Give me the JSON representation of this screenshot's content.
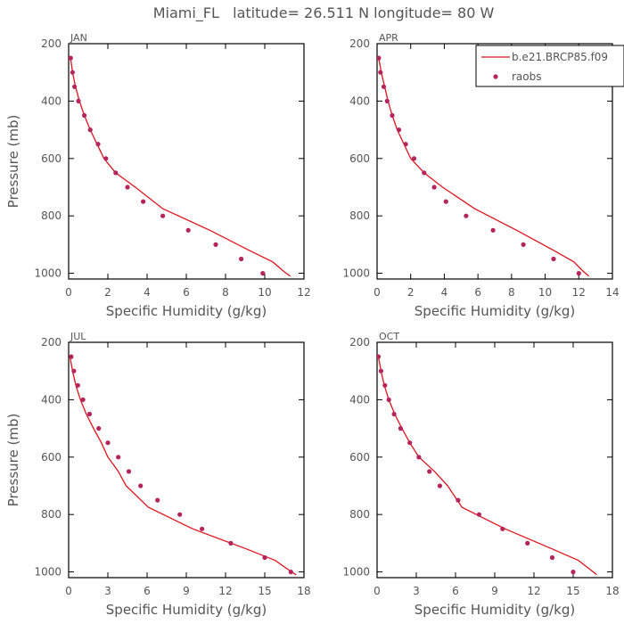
{
  "chart_data": {
    "type": "line",
    "title": "Miami_FL   latitude= 26.511 N longitude= 80 W",
    "legend": {
      "model_label": "b.e21.BRCP85.f09",
      "obs_label": "raobs",
      "placement": "top-right"
    },
    "colors": {
      "model": "#e0141e",
      "obs": "#b5245a"
    },
    "panels": [
      {
        "month": "JAN",
        "xlabel": "Specific Humidity (g/kg)",
        "ylabel": "Pressure (mb)",
        "xlim": [
          0,
          12
        ],
        "ylim": [
          200,
          1020
        ],
        "xticks": [
          0,
          2,
          4,
          6,
          8,
          10,
          12
        ],
        "yticks": [
          200,
          400,
          600,
          800,
          1000
        ],
        "model": {
          "q": [
            0.1,
            0.2,
            0.35,
            0.55,
            0.8,
            1.1,
            1.45,
            1.8,
            2.1,
            2.4,
            3.4,
            4.8,
            7.2,
            9.2,
            10.4,
            11.0,
            11.3
          ],
          "p": [
            250,
            300,
            350,
            400,
            450,
            500,
            550,
            600,
            625,
            650,
            700,
            775,
            850,
            920,
            960,
            995,
            1010
          ]
        },
        "obs": {
          "q": [
            0.1,
            0.2,
            0.3,
            0.5,
            0.8,
            1.1,
            1.5,
            1.9,
            2.4,
            3.0,
            3.8,
            4.8,
            6.1,
            7.5,
            8.8,
            9.9
          ],
          "p": [
            250,
            300,
            350,
            400,
            450,
            500,
            550,
            600,
            650,
            700,
            750,
            800,
            850,
            900,
            950,
            1000
          ]
        }
      },
      {
        "month": "APR",
        "xlabel": "Specific Humidity (g/kg)",
        "ylabel": "",
        "xlim": [
          0,
          14
        ],
        "ylim": [
          200,
          1020
        ],
        "xticks": [
          0,
          2,
          4,
          6,
          8,
          10,
          12,
          14
        ],
        "yticks": [
          200,
          400,
          600,
          800,
          1000
        ],
        "model": {
          "q": [
            0.1,
            0.25,
            0.45,
            0.65,
            0.9,
            1.2,
            1.6,
            2.0,
            2.4,
            2.8,
            3.9,
            5.8,
            8.3,
            10.5,
            11.7,
            12.3,
            12.6
          ],
          "p": [
            250,
            300,
            350,
            400,
            450,
            500,
            550,
            600,
            625,
            650,
            700,
            775,
            850,
            920,
            960,
            995,
            1010
          ]
        },
        "obs": {
          "q": [
            0.1,
            0.2,
            0.4,
            0.6,
            0.9,
            1.3,
            1.7,
            2.2,
            2.8,
            3.4,
            4.1,
            5.3,
            6.9,
            8.7,
            10.5,
            12.0
          ],
          "p": [
            250,
            300,
            350,
            400,
            450,
            500,
            550,
            600,
            650,
            700,
            750,
            800,
            850,
            900,
            950,
            1000
          ]
        }
      },
      {
        "month": "JUL",
        "xlabel": "Specific Humidity (g/kg)",
        "ylabel": "Pressure (mb)",
        "xlim": [
          0,
          18
        ],
        "ylim": [
          200,
          1020
        ],
        "xticks": [
          0,
          3,
          6,
          9,
          12,
          15,
          18
        ],
        "yticks": [
          200,
          400,
          600,
          800,
          1000
        ],
        "model": {
          "q": [
            0.1,
            0.3,
            0.55,
            0.9,
            1.35,
            1.9,
            2.5,
            3.0,
            3.4,
            3.8,
            4.4,
            6.1,
            9.5,
            13.6,
            15.8,
            16.9,
            17.4
          ],
          "p": [
            250,
            300,
            350,
            400,
            450,
            500,
            550,
            600,
            625,
            650,
            700,
            775,
            850,
            920,
            960,
            995,
            1010
          ]
        },
        "obs": {
          "q": [
            0.2,
            0.4,
            0.7,
            1.1,
            1.6,
            2.3,
            3.0,
            3.8,
            4.6,
            5.5,
            6.8,
            8.5,
            10.2,
            12.4,
            15.0,
            17.0
          ],
          "p": [
            250,
            300,
            350,
            400,
            450,
            500,
            550,
            600,
            650,
            700,
            750,
            800,
            850,
            900,
            950,
            1000
          ]
        }
      },
      {
        "month": "OCT",
        "xlabel": "Specific Humidity (g/kg)",
        "ylabel": "",
        "xlim": [
          0,
          18
        ],
        "ylim": [
          200,
          1020
        ],
        "xticks": [
          0,
          3,
          6,
          9,
          12,
          15,
          18
        ],
        "yticks": [
          200,
          400,
          600,
          800,
          1000
        ],
        "model": {
          "q": [
            0.1,
            0.3,
            0.55,
            0.9,
            1.35,
            1.9,
            2.5,
            3.2,
            3.8,
            4.4,
            5.4,
            6.5,
            9.8,
            13.4,
            15.4,
            16.4,
            16.8
          ],
          "p": [
            250,
            300,
            350,
            400,
            450,
            500,
            550,
            600,
            625,
            650,
            700,
            775,
            850,
            920,
            960,
            995,
            1010
          ]
        },
        "obs": {
          "q": [
            0.1,
            0.3,
            0.6,
            0.9,
            1.3,
            1.8,
            2.5,
            3.2,
            4.0,
            4.8,
            6.2,
            7.8,
            9.6,
            11.5,
            13.4,
            15.0
          ],
          "p": [
            250,
            300,
            350,
            400,
            450,
            500,
            550,
            600,
            650,
            700,
            750,
            800,
            850,
            900,
            950,
            1000
          ]
        }
      }
    ]
  }
}
